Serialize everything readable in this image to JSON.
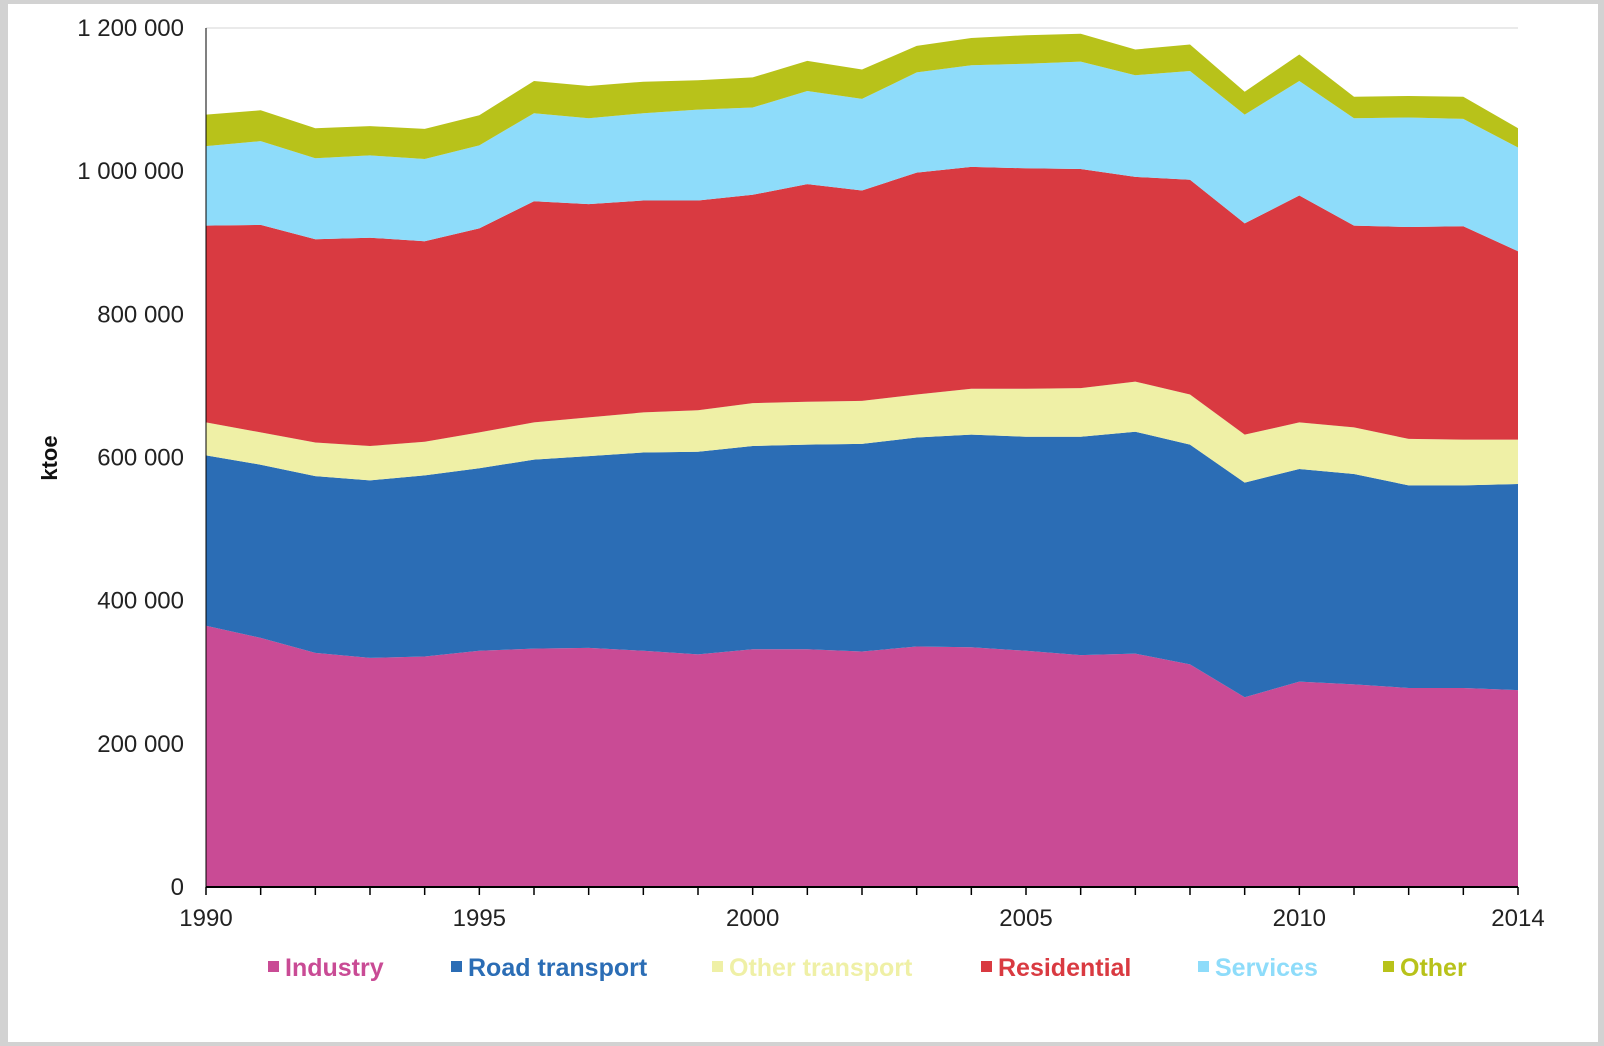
{
  "chart_data": {
    "type": "area",
    "stacked": true,
    "title": "",
    "xlabel": "",
    "ylabel": "ktoe",
    "xlim": [
      1990,
      2014
    ],
    "ylim": [
      0,
      1200000
    ],
    "y_ticks": [
      0,
      200000,
      400000,
      600000,
      800000,
      1000000,
      1200000
    ],
    "y_tick_labels": [
      "0",
      "200 000",
      "400 000",
      "600 000",
      "800 000",
      "1 000 000",
      "1 200 000"
    ],
    "x_ticks": [
      1990,
      1995,
      2000,
      2005,
      2010,
      2014
    ],
    "x_tick_labels": [
      "1990",
      "1995",
      "2000",
      "2005",
      "2010",
      "2014"
    ],
    "grid": "horizontal top line only",
    "legend_position": "bottom",
    "x": [
      1990,
      1991,
      1992,
      1993,
      1994,
      1995,
      1996,
      1997,
      1998,
      1999,
      2000,
      2001,
      2002,
      2003,
      2004,
      2005,
      2006,
      2007,
      2008,
      2009,
      2010,
      2011,
      2012,
      2013,
      2014
    ],
    "series": [
      {
        "name": "Industry",
        "color": "#c94b95",
        "values": [
          365000,
          348000,
          327000,
          320000,
          322000,
          330000,
          333000,
          334000,
          330000,
          325000,
          332000,
          332000,
          329000,
          336000,
          335000,
          330000,
          324000,
          326000,
          311000,
          265000,
          287000,
          283000,
          278000,
          278000,
          275000
        ]
      },
      {
        "name": "Road transport",
        "color": "#2b6db5",
        "values": [
          238000,
          242000,
          247000,
          248000,
          253000,
          255000,
          264000,
          268000,
          277000,
          283000,
          284000,
          286000,
          290000,
          292000,
          297000,
          299000,
          305000,
          310000,
          307000,
          300000,
          297000,
          294000,
          283000,
          283000,
          288000
        ]
      },
      {
        "name": "Other transport",
        "color": "#eff0a6",
        "values": [
          46000,
          45000,
          47000,
          48000,
          47000,
          50000,
          52000,
          54000,
          56000,
          58000,
          60000,
          60000,
          60000,
          60000,
          64000,
          67000,
          68000,
          70000,
          70000,
          67000,
          65000,
          65000,
          65000,
          64000,
          62000
        ]
      },
      {
        "name": "Residential",
        "color": "#d93a41",
        "values": [
          275000,
          290000,
          284000,
          291000,
          280000,
          285000,
          309000,
          298000,
          296000,
          293000,
          291000,
          304000,
          294000,
          310000,
          310000,
          308000,
          306000,
          286000,
          300000,
          295000,
          317000,
          282000,
          296000,
          298000,
          263000
        ]
      },
      {
        "name": "Services",
        "color": "#8edcfa",
        "values": [
          111000,
          117000,
          113000,
          115000,
          115000,
          116000,
          123000,
          120000,
          122000,
          127000,
          122000,
          130000,
          128000,
          140000,
          142000,
          146000,
          150000,
          142000,
          152000,
          152000,
          160000,
          150000,
          153000,
          150000,
          145000
        ]
      },
      {
        "name": "Other",
        "color": "#b8c21a",
        "values": [
          44000,
          43000,
          42000,
          41000,
          42000,
          42000,
          45000,
          45000,
          44000,
          41000,
          42000,
          42000,
          41000,
          37000,
          38000,
          40000,
          39000,
          36000,
          37000,
          32000,
          37000,
          30000,
          30000,
          31000,
          27000
        ]
      }
    ]
  }
}
